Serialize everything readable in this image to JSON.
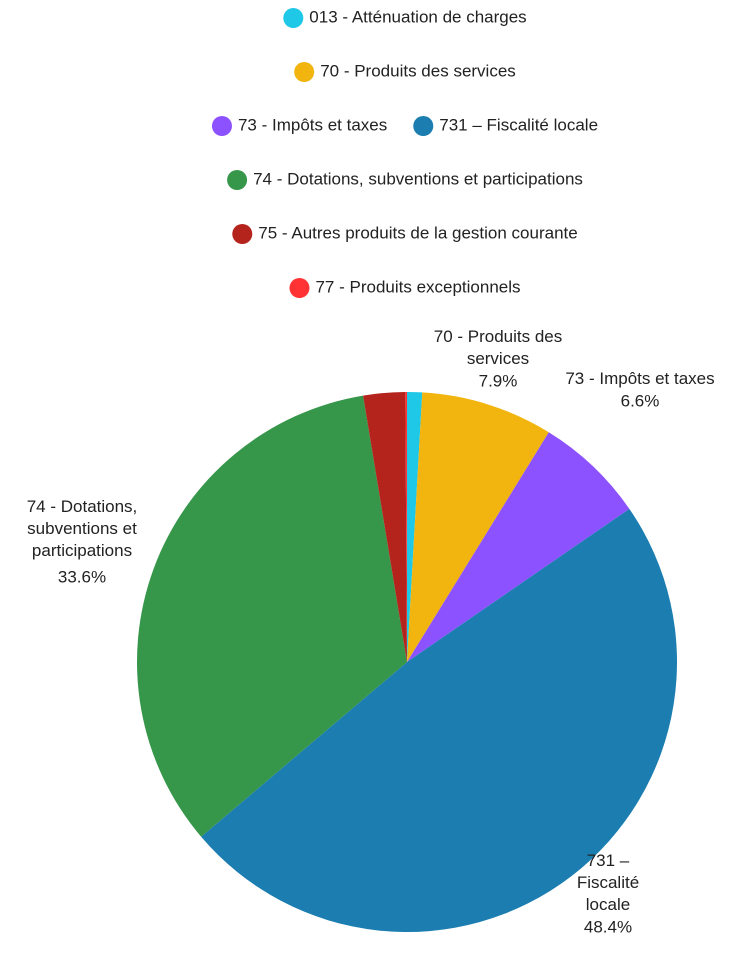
{
  "chart_data": {
    "type": "pie",
    "categories": [
      "013 - Atténuation de charges",
      "70 - Produits des services",
      "73 - Impôts et taxes",
      "731 – Fiscalité locale",
      "74 - Dotations, subventions et participations",
      "75 - Autres produits de la gestion courante",
      "77 - Produits exceptionnels"
    ],
    "values": [
      0.9,
      7.9,
      6.6,
      48.4,
      33.6,
      2.5,
      0.1
    ],
    "value_labels": [
      null,
      "7.9%",
      "6.6%",
      "48.4%",
      "33.6%",
      null,
      null
    ],
    "colors": [
      "#1ec8e6",
      "#f2b40f",
      "#8c52ff",
      "#1b7db0",
      "#36964a",
      "#b5231d",
      "#ff3333"
    ],
    "legend": "top"
  }
}
